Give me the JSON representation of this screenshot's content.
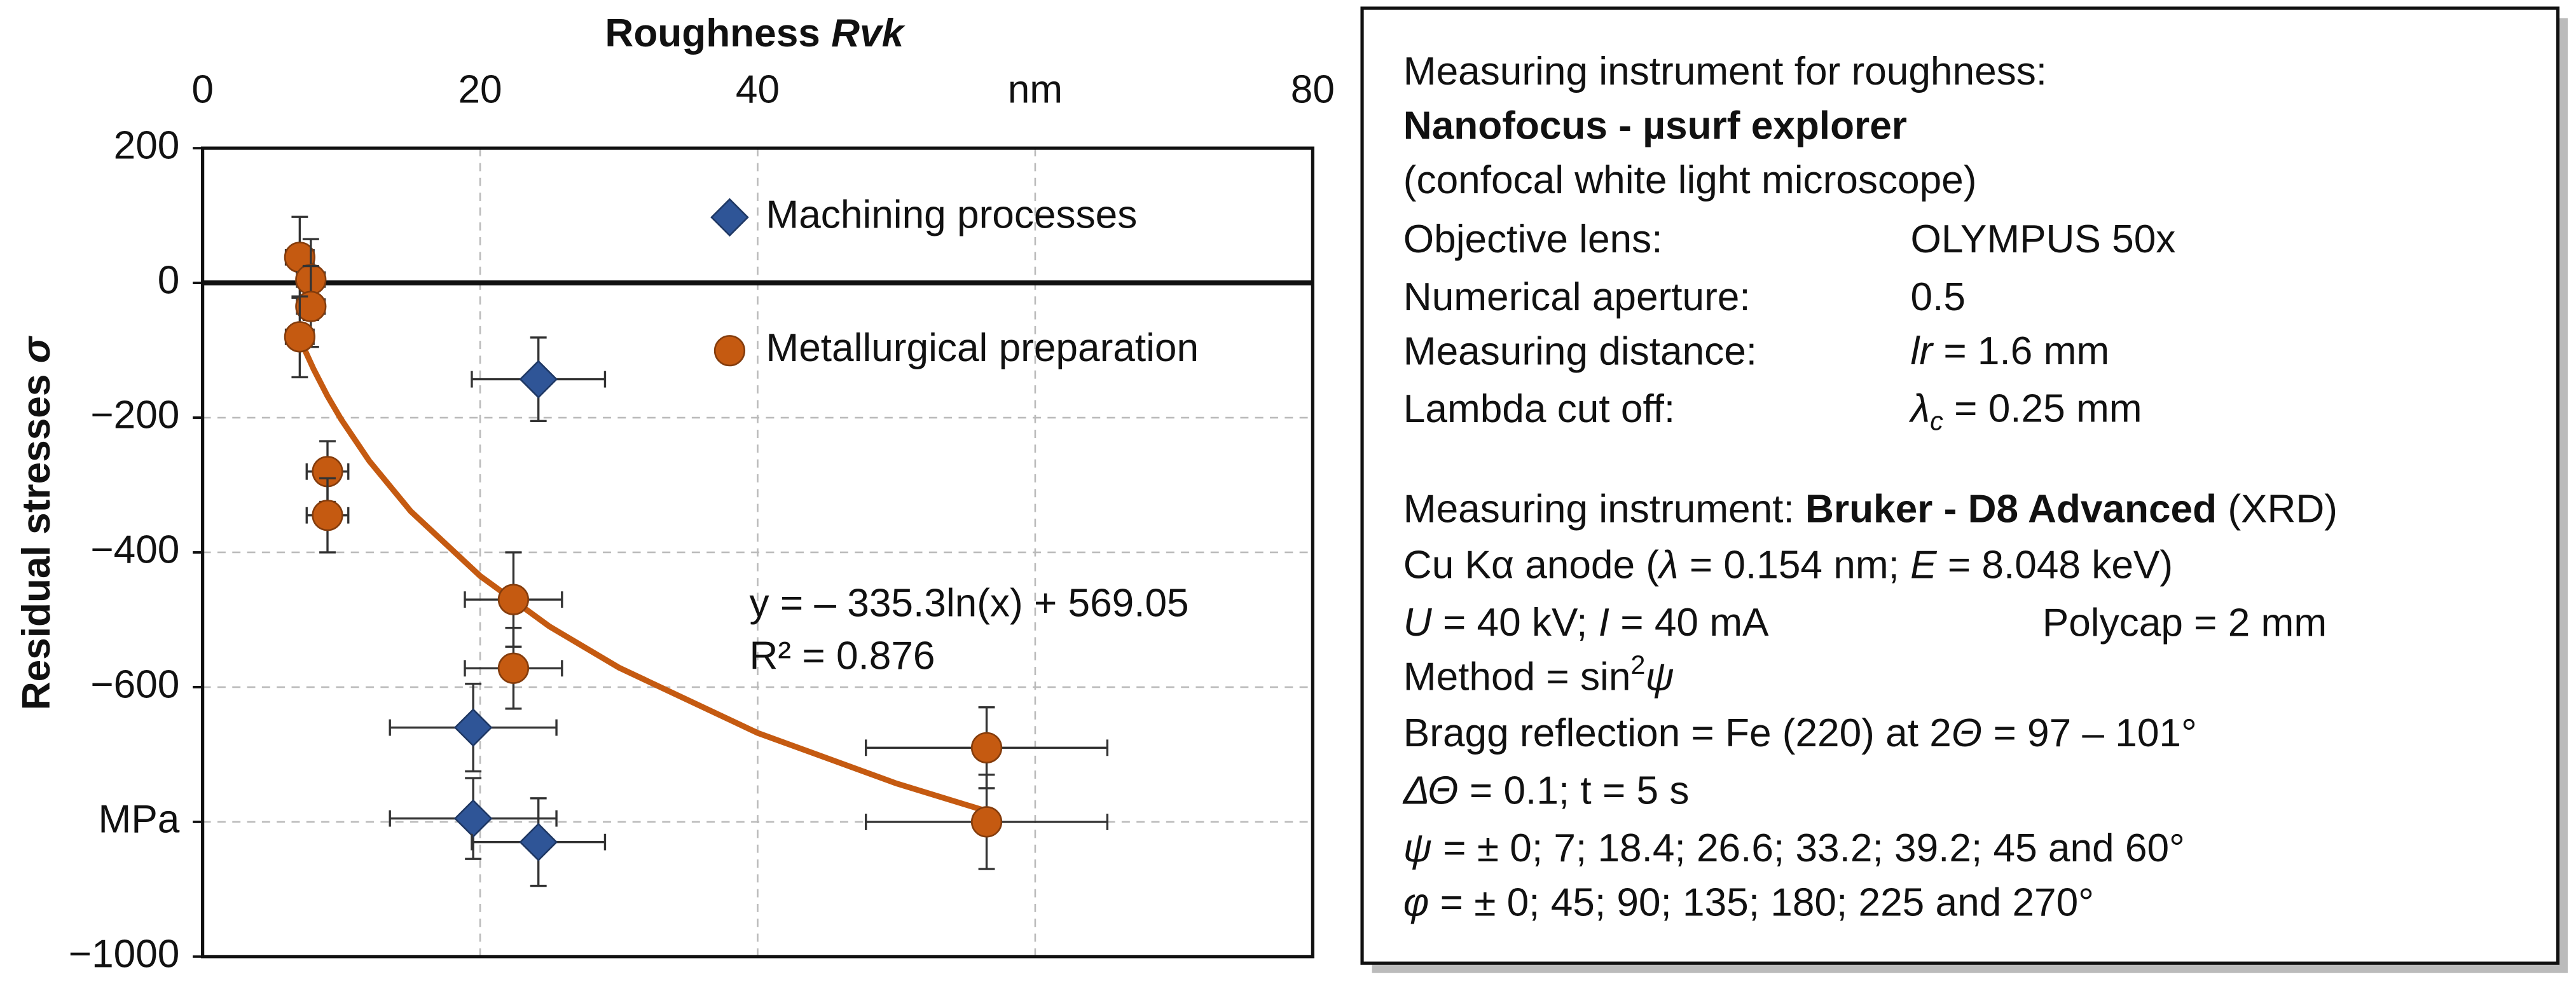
{
  "chart_data": {
    "type": "scatter",
    "x_label": [
      "Roughness ",
      "Rvk"
    ],
    "y_label": [
      "Residual stresses ",
      "σ"
    ],
    "xlim": [
      0,
      80
    ],
    "xticks": [
      0,
      20,
      40,
      {
        "value": 60,
        "label": "nm"
      },
      80
    ],
    "ylim": [
      -1000,
      200
    ],
    "yticks": [
      200,
      0,
      {
        "value": -200,
        "label": "−200"
      },
      {
        "value": -400,
        "label": "−400"
      },
      {
        "value": -600,
        "label": "−600"
      },
      {
        "value": -800,
        "label": "MPa"
      },
      {
        "value": -1000,
        "label": "−1000"
      }
    ],
    "grid": true,
    "legend": "upper right",
    "series": [
      {
        "name": "Machining processes",
        "color": "#2f5597",
        "marker": "diamond",
        "x": [
          24.2,
          19.5,
          19.5,
          24.2
        ],
        "values": [
          -143,
          -660,
          -795,
          -830
        ],
        "xerr": [
          4.8,
          6,
          6,
          4.8
        ],
        "yerr": [
          62,
          65,
          60,
          65
        ]
      },
      {
        "name": "Metallurgical preparation",
        "color": "#c55a11",
        "marker": "circle",
        "x": [
          7.0,
          7.8,
          7.8,
          7.0,
          9.0,
          9.0,
          22.4,
          22.4,
          56.5,
          56.5
        ],
        "values": [
          38,
          5,
          -35,
          -80,
          -280,
          -345,
          -470,
          -572,
          -690,
          -800
        ],
        "xerr": [
          1,
          1,
          1,
          1,
          1.5,
          1.5,
          3.5,
          3.5,
          8.7,
          8.7
        ],
        "yerr": [
          60,
          60,
          60,
          60,
          45,
          55,
          70,
          60,
          60,
          70
        ]
      }
    ],
    "trendline": {
      "color": "#c55a11",
      "x": [
        7,
        8,
        9,
        10,
        12,
        15,
        20,
        25,
        30,
        40,
        50,
        56.5
      ],
      "values": [
        -83,
        -128,
        -168,
        -203,
        -264,
        -339,
        -435,
        -510,
        -571,
        -668,
        -743,
        -784
      ]
    },
    "annotations": [
      "y = – 335.3ln(x) + 569.05",
      "R² = 0.876"
    ]
  },
  "info_panel": {
    "rows": [
      [
        "Measuring instrument for roughness:"
      ],
      [
        "Nanofocus - µsurf explorer"
      ],
      [
        "(confocal white light microscope)"
      ],
      [
        "Objective lens:",
        "OLYMPUS 50x"
      ],
      [
        "Numerical aperture:",
        "0.5"
      ],
      [
        "Measuring distance:",
        "lr",
        " = 1.6 mm"
      ],
      [
        "Lambda cut off:",
        "λ",
        "c",
        " = 0.25 mm"
      ],
      [
        "Measuring instrument: ",
        "Bruker - D8 Advanced",
        " (XRD)"
      ],
      [
        "Cu Kα anode (",
        "λ",
        " = 0.154 nm; ",
        "E",
        " = 8.048 keV)"
      ],
      [
        "U",
        " = 40 kV; ",
        "I",
        " = 40 mA",
        "Polycap = 2 mm"
      ],
      [
        "Method = sin",
        "2",
        "ψ"
      ],
      [
        "Bragg reflection =  Fe (220) at 2",
        "Θ",
        " = 97 – 101°"
      ],
      [
        "ΔΘ",
        " = 0.1; t = 5 s"
      ],
      [
        "ψ",
        " = ± 0; 7; 18.4; 26.6; 33.2; 39.2; 45 and 60°"
      ],
      [
        "φ",
        " = ± 0; 45; 90; 135; 180; 225 and 270°"
      ]
    ]
  }
}
